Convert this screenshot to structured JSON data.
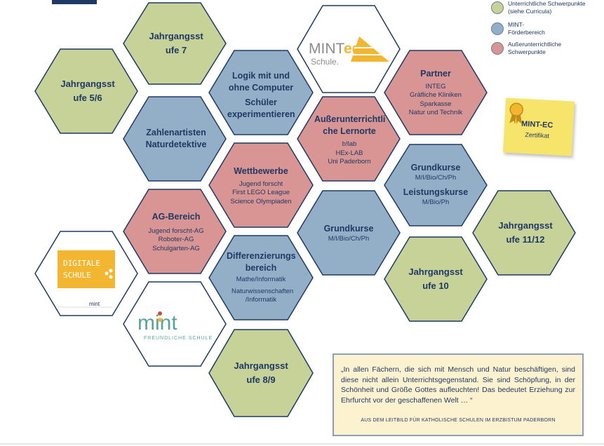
{
  "colors": {
    "green": "#c6d297",
    "blue": "#93afc8",
    "red": "#d99593",
    "white": "#ffffff",
    "text": "#1f3864"
  },
  "legend": [
    {
      "label": "Unterrichtliche Schwerpunkte (siehe Curricula)",
      "color": "#c6d297"
    },
    {
      "label": "MINT-Förderbereich",
      "color": "#93afc8"
    },
    {
      "label": "Außerunterrichtliche Schwerpunkte",
      "color": "#d99593"
    }
  ],
  "hexes": {
    "stufe7": {
      "title": "Jahrgangsst ufe 7",
      "color": "green"
    },
    "stufe56": {
      "title": "Jahrgangsst ufe 5/6",
      "color": "green"
    },
    "logik": {
      "title": "Logik mit und ohne Computer",
      "title2": "Schüler experimentieren",
      "color": "blue"
    },
    "zahlen": {
      "title": "Zahlenartisten Naturdetektive",
      "color": "blue"
    },
    "ausser": {
      "title": "Außerunterrichtli che Lernorte",
      "items": [
        "b!lab",
        "HEx-LAB",
        "Uni Paderborn"
      ],
      "color": "red"
    },
    "partner": {
      "title": "Partner",
      "items": [
        "INTEG",
        "Gräfliche Kliniken",
        "Sparkasse",
        "Natur und Technik"
      ],
      "color": "red"
    },
    "wettbewerbe": {
      "title": "Wettbewerbe",
      "items": [
        "Jugend forscht",
        "First LEGO League",
        "Science Olympiaden"
      ],
      "color": "red"
    },
    "gk_lk": {
      "title": "Grundkurse",
      "sub": "M/I/Bio/Ch/Ph",
      "title2": "Leistungskurse",
      "sub2": "M/Bio/Ph",
      "color": "blue"
    },
    "ag": {
      "title": "AG-Bereich",
      "items": [
        "Jugend forscht-AG",
        "Roboter-AG",
        "Schulgarten-AG"
      ],
      "color": "red"
    },
    "gk": {
      "title": "Grundkurse",
      "sub": "M/I/Bio/Ch/Ph",
      "color": "blue"
    },
    "stufe1112": {
      "title": "Jahrgangsst ufe 11/12",
      "color": "green"
    },
    "diff": {
      "title": "Differenzierungs bereich",
      "items": [
        "Mathe/Informatik",
        "Naturwissenschaften /Informatik"
      ],
      "color": "blue"
    },
    "stufe10": {
      "title": "Jahrgangsst ufe 10",
      "color": "green"
    },
    "stufe89": {
      "title": "Jahrgangsst ufe 8/9",
      "color": "green"
    }
  },
  "logos": {
    "mintec": {
      "text1": "MINT",
      "text2": "ec",
      "text3": "Schule."
    },
    "digitale": {
      "line1": "DIGITALE",
      "line2": "SCHULE",
      "small": "mint"
    },
    "mint_freundlich": {
      "big": "mint",
      "small": "FREUNDLICHE SCHULE"
    }
  },
  "note": {
    "title": "MINT-EC",
    "subtitle": "Zertifikat"
  },
  "quote": {
    "text": "„In allen Fächern, die sich mit Mensch und Natur beschäftigen, sind diese nicht allein Unterrichtsgegenstand. Sie sind Schöpfung, in der Schönheit und Größe Gottes aufleuchten! Das bedeutet Erziehung zur Ehrfurcht vor der geschaffenen Welt … “",
    "source": "AUS DEM LEITBILD FÜR KATHOLISCHE SCHULEN IM ERZBISTUM PADERBORN"
  }
}
